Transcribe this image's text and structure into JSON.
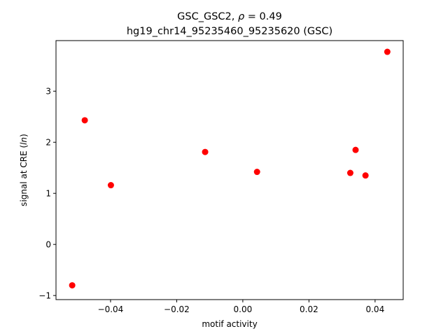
{
  "chart_data": {
    "type": "scatter",
    "title": {
      "prefix": "GSC_GSC2, ",
      "rho_symbol": "ρ",
      "rho_value": " = 0.49",
      "line2": "hg19_chr14_95235460_95235620 (GSC)"
    },
    "xlabel": "motif activity",
    "ylabel": {
      "text": "signal at CRE (",
      "italic": "ln",
      "end": ")"
    },
    "xlim": [
      -0.0565,
      0.0485
    ],
    "ylim": [
      -1.08,
      3.99
    ],
    "xticks": [
      {
        "value": -0.04,
        "label": "−0.04"
      },
      {
        "value": -0.02,
        "label": "−0.02"
      },
      {
        "value": 0.0,
        "label": "0.00"
      },
      {
        "value": 0.02,
        "label": "0.02"
      },
      {
        "value": 0.04,
        "label": "0.04"
      }
    ],
    "yticks": [
      {
        "value": -1,
        "label": "−1"
      },
      {
        "value": 0,
        "label": "0"
      },
      {
        "value": 1,
        "label": "1"
      },
      {
        "value": 2,
        "label": "2"
      },
      {
        "value": 3,
        "label": "3"
      }
    ],
    "grid": false,
    "marker_color": "#ff0000",
    "points": [
      {
        "x": -0.0516,
        "y": -0.8
      },
      {
        "x": -0.0478,
        "y": 2.43
      },
      {
        "x": -0.0399,
        "y": 1.16
      },
      {
        "x": -0.0114,
        "y": 1.81
      },
      {
        "x": 0.0043,
        "y": 1.42
      },
      {
        "x": 0.0325,
        "y": 1.4
      },
      {
        "x": 0.0341,
        "y": 1.85
      },
      {
        "x": 0.0371,
        "y": 1.35
      },
      {
        "x": 0.0437,
        "y": 3.77
      }
    ]
  }
}
